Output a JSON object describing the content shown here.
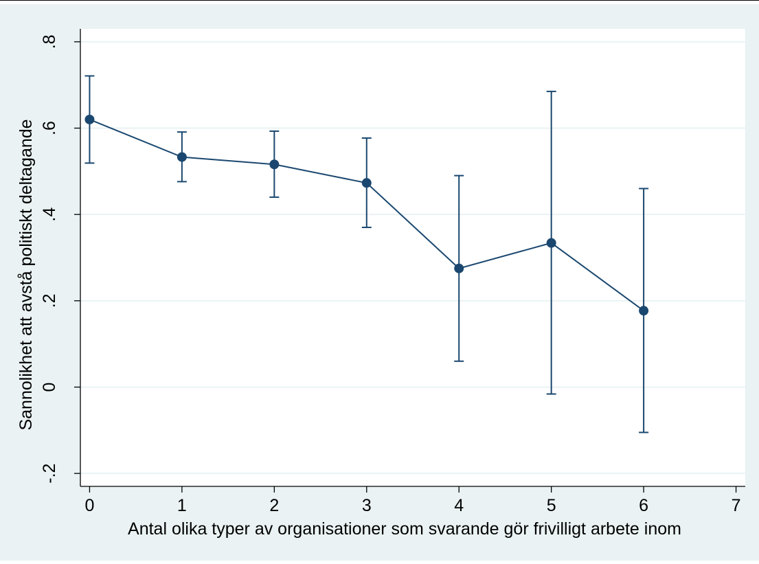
{
  "chart_data": {
    "type": "line",
    "title": "",
    "xlabel": "Antal olika typer av organisationer som svarande gör frivilligt arbete inom",
    "ylabel": "Sannolikhet att avstå politiskt deltagande",
    "x_ticks": [
      0,
      1,
      2,
      3,
      4,
      5,
      6,
      7
    ],
    "x_tick_labels": [
      "0",
      "1",
      "2",
      "3",
      "4",
      "5",
      "6",
      "7"
    ],
    "y_ticks": [
      -0.2,
      0,
      0.2,
      0.4,
      0.6,
      0.8
    ],
    "y_tick_labels": [
      "-.2",
      "0",
      ".2",
      ".4",
      ".6",
      ".8"
    ],
    "xlim": [
      -0.1,
      7.1
    ],
    "ylim": [
      -0.23,
      0.83
    ],
    "grid": true,
    "colors": {
      "outer_background": "#eaf2f3",
      "plot_background": "#ffffff",
      "series": "#1a476f",
      "grid": "#eaf2f3"
    },
    "series": [
      {
        "x": [
          0,
          1,
          2,
          3,
          4,
          5,
          6
        ],
        "y": [
          0.62,
          0.533,
          0.516,
          0.473,
          0.275,
          0.334,
          0.177
        ],
        "ci_lower": [
          0.519,
          0.476,
          0.44,
          0.37,
          0.06,
          -0.016,
          -0.105
        ],
        "ci_upper": [
          0.721,
          0.591,
          0.593,
          0.577,
          0.49,
          0.685,
          0.46
        ]
      }
    ]
  }
}
